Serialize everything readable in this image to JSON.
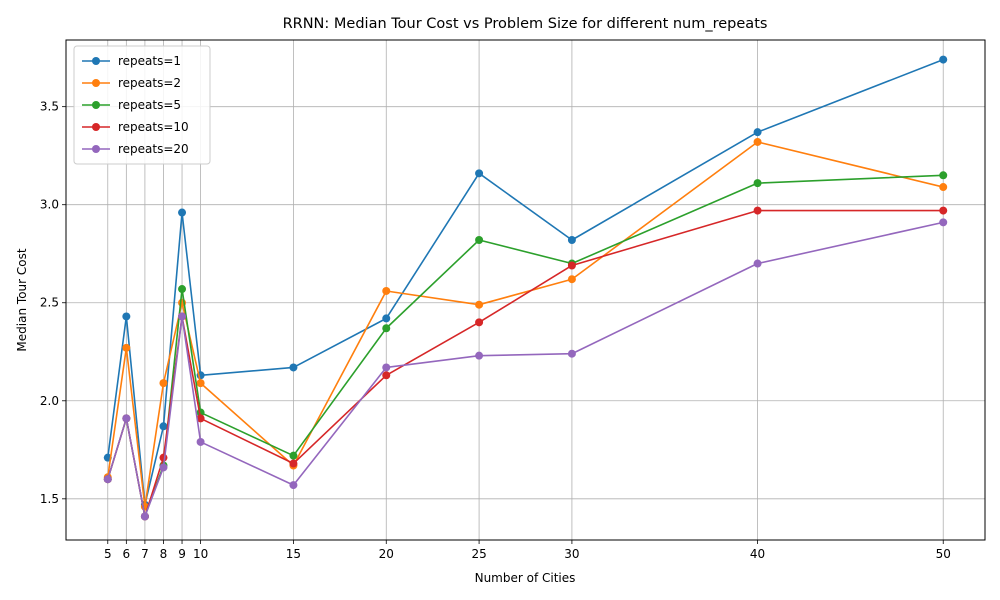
{
  "chart_data": {
    "type": "line",
    "title": "RRNN: Median Tour Cost vs Problem Size for different num_repeats",
    "xlabel": "Number of Cities",
    "ylabel": "Median Tour Cost",
    "x": [
      5,
      6,
      7,
      8,
      9,
      10,
      15,
      20,
      25,
      30,
      40,
      50
    ],
    "xticks": [
      "5",
      "6",
      "7",
      "8",
      "9",
      "10",
      "15",
      "20",
      "25",
      "30",
      "40",
      "50"
    ],
    "yticks": [
      "1.5",
      "2.0",
      "2.5",
      "3.0",
      "3.5"
    ],
    "xlim": [
      2.75,
      52.25
    ],
    "ylim": [
      1.29,
      3.84
    ],
    "grid": true,
    "legend_position": "top-left",
    "series": [
      {
        "name": "repeats=1",
        "color": "#1f77b4",
        "values": [
          1.71,
          2.43,
          1.47,
          1.87,
          2.96,
          2.13,
          2.17,
          2.42,
          3.16,
          2.82,
          3.37,
          3.74
        ]
      },
      {
        "name": "repeats=2",
        "color": "#ff7f0e",
        "values": [
          1.61,
          2.27,
          1.46,
          2.09,
          2.5,
          2.09,
          1.67,
          2.56,
          2.49,
          2.62,
          3.32,
          3.09
        ]
      },
      {
        "name": "repeats=5",
        "color": "#2ca02c",
        "values": [
          1.6,
          1.91,
          1.41,
          1.67,
          2.57,
          1.94,
          1.72,
          2.37,
          2.82,
          2.7,
          3.11,
          3.15
        ]
      },
      {
        "name": "repeats=10",
        "color": "#d62728",
        "values": [
          1.6,
          1.91,
          1.41,
          1.71,
          2.43,
          1.91,
          1.68,
          2.13,
          2.4,
          2.69,
          2.97,
          2.97
        ]
      },
      {
        "name": "repeats=20",
        "color": "#9467bd",
        "values": [
          1.6,
          1.91,
          1.41,
          1.66,
          2.43,
          1.79,
          1.57,
          2.17,
          2.23,
          2.24,
          2.7,
          2.91
        ]
      }
    ]
  }
}
